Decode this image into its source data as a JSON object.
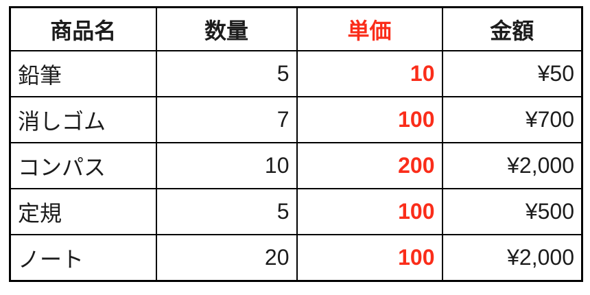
{
  "chart_data": {
    "type": "table",
    "title": "",
    "columns": [
      "商品名",
      "数量",
      "単価",
      "金額"
    ],
    "rows": [
      [
        "鉛筆",
        "5",
        "10",
        "¥50"
      ],
      [
        "消しゴム",
        "7",
        "100",
        "¥700"
      ],
      [
        "コンパス",
        "10",
        "200",
        "¥2,000"
      ],
      [
        "定規",
        "5",
        "100",
        "¥500"
      ],
      [
        "ノート",
        "20",
        "100",
        "¥2,000"
      ]
    ],
    "highlight_column": "単価",
    "highlight_style": "bold red text for header and values"
  },
  "colors": {
    "accent_red": "#fa2d1a",
    "text_black": "#1c1c1c",
    "border_black": "#000000",
    "background": "#ffffff"
  }
}
